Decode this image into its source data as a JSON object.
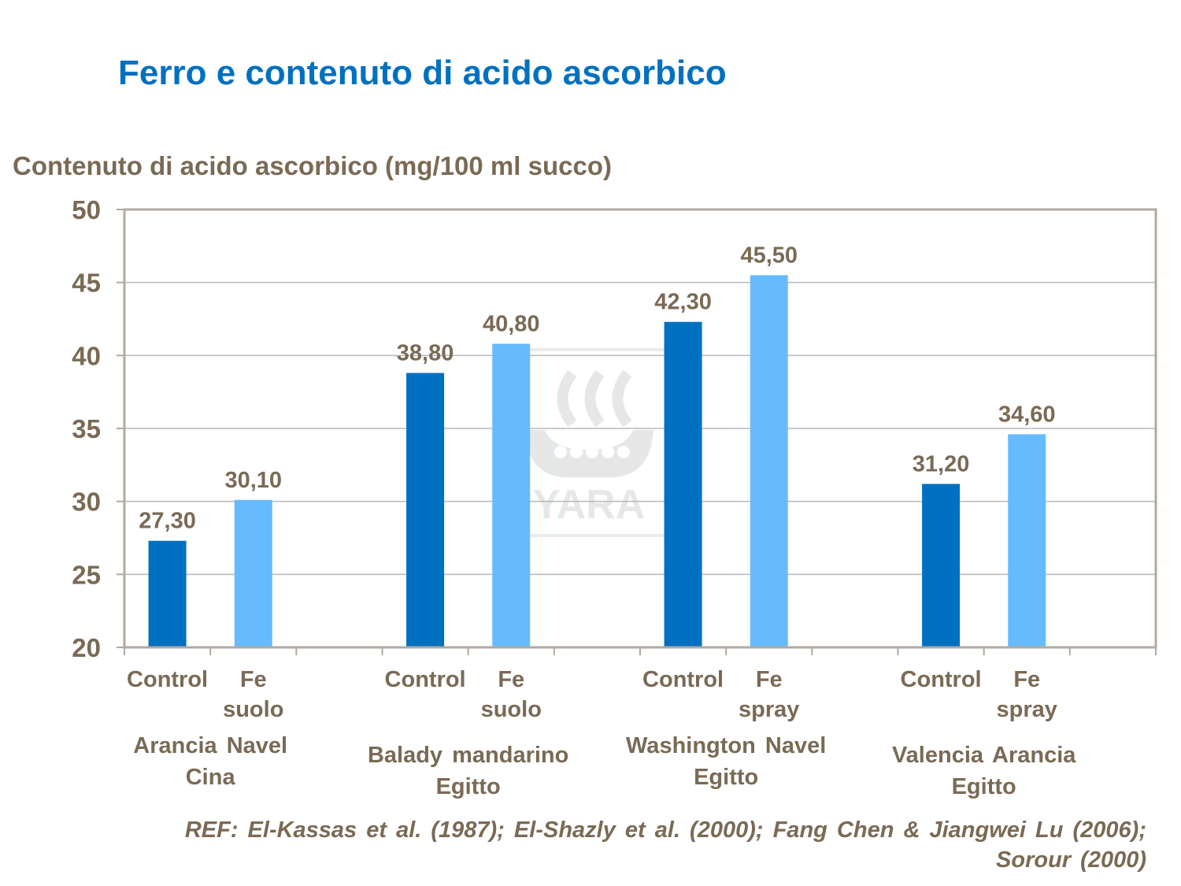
{
  "title": "Ferro e contenuto di acido ascorbico",
  "reference": "REF: El-Kassas et al. (1987); El-Shazly et al. (2000); Fang Chen & Jiangwei Lu (2006); Sorour (2000)",
  "watermark": "YARA",
  "chart_data": {
    "type": "bar",
    "ylabel": "Contenuto di acido ascorbico (mg/100 ml succo)",
    "ylim": [
      20,
      50
    ],
    "yticks": [
      20,
      25,
      30,
      35,
      40,
      45,
      50
    ],
    "grid": true,
    "groups": [
      {
        "label_lines": [
          "Arancia Navel",
          "Cina"
        ],
        "bars": [
          {
            "label_lines": [
              "Control"
            ],
            "value": 27.3,
            "value_label": "27,30",
            "type": "control"
          },
          {
            "label_lines": [
              "Fe",
              "suolo"
            ],
            "value": 30.1,
            "value_label": "30,10",
            "type": "fe"
          }
        ]
      },
      {
        "label_lines": [
          "Balady mandarino",
          "Egitto"
        ],
        "bars": [
          {
            "label_lines": [
              "Control"
            ],
            "value": 38.8,
            "value_label": "38,80",
            "type": "control"
          },
          {
            "label_lines": [
              "Fe",
              "suolo"
            ],
            "value": 40.8,
            "value_label": "40,80",
            "type": "fe"
          }
        ]
      },
      {
        "label_lines": [
          "Washington Navel",
          "Egitto"
        ],
        "bars": [
          {
            "label_lines": [
              "Control"
            ],
            "value": 42.3,
            "value_label": "42,30",
            "type": "control"
          },
          {
            "label_lines": [
              "Fe",
              "spray"
            ],
            "value": 45.5,
            "value_label": "45,50",
            "type": "fe"
          }
        ]
      },
      {
        "label_lines": [
          "Valencia Arancia",
          "Egitto"
        ],
        "bars": [
          {
            "label_lines": [
              "Control"
            ],
            "value": 31.2,
            "value_label": "31,20",
            "type": "control"
          },
          {
            "label_lines": [
              "Fe",
              "spray"
            ],
            "value": 34.6,
            "value_label": "34,60",
            "type": "fe"
          }
        ]
      }
    ],
    "colors": {
      "control": "#0070c0",
      "fe": "#66bbff",
      "text": "#7a6a55",
      "grid": "#b8b8b8",
      "border": "#b2a9a0"
    }
  }
}
